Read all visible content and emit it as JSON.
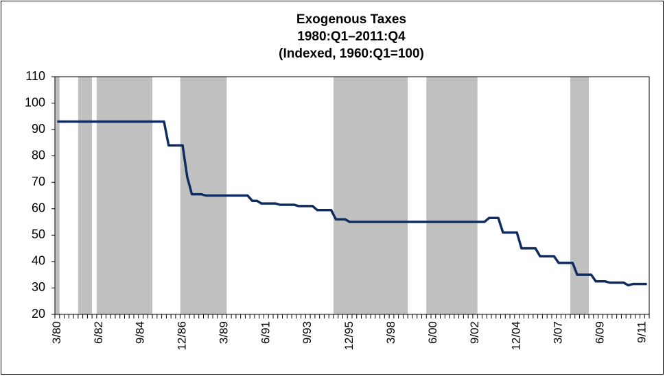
{
  "chart_data": {
    "type": "line",
    "title": "Exogenous Taxes",
    "subtitle": "1980:Q1–2011:Q4",
    "note": "(Indexed, 1960:Q1=100)",
    "categories": [
      "3/80",
      null,
      null,
      null,
      null,
      null,
      null,
      null,
      null,
      "6/82",
      null,
      null,
      null,
      null,
      null,
      null,
      null,
      null,
      "9/84",
      null,
      null,
      null,
      null,
      null,
      null,
      null,
      null,
      "12/86",
      null,
      null,
      null,
      null,
      null,
      null,
      null,
      null,
      "3/89",
      null,
      null,
      null,
      null,
      null,
      null,
      null,
      null,
      "6/91",
      null,
      null,
      null,
      null,
      null,
      null,
      null,
      null,
      "9/93",
      null,
      null,
      null,
      null,
      null,
      null,
      null,
      null,
      "12/95",
      null,
      null,
      null,
      null,
      null,
      null,
      null,
      null,
      "3/98",
      null,
      null,
      null,
      null,
      null,
      null,
      null,
      null,
      "6/00",
      null,
      null,
      null,
      null,
      null,
      null,
      null,
      null,
      "9/02",
      null,
      null,
      null,
      null,
      null,
      null,
      null,
      null,
      "12/04",
      null,
      null,
      null,
      null,
      null,
      null,
      null,
      null,
      "3/07",
      null,
      null,
      null,
      null,
      null,
      null,
      null,
      null,
      "6/09",
      null,
      null,
      null,
      null,
      null,
      null,
      null,
      null,
      "9/11",
      null
    ],
    "values": [
      93,
      93,
      93,
      93,
      93,
      93,
      93,
      93,
      93,
      93,
      93,
      93,
      93,
      93,
      93,
      93,
      93,
      93,
      93,
      93,
      93,
      93,
      93,
      93,
      84,
      84,
      84,
      84,
      72,
      65.5,
      65.5,
      65.5,
      65,
      65,
      65,
      65,
      65,
      65,
      65,
      65,
      65,
      65,
      63,
      63,
      62,
      62,
      62,
      62,
      61.5,
      61.5,
      61.5,
      61.5,
      61,
      61,
      61,
      61,
      59.5,
      59.5,
      59.5,
      59.5,
      56,
      56,
      56,
      55,
      55,
      55,
      55,
      55,
      55,
      55,
      55,
      55,
      55,
      55,
      55,
      55,
      55,
      55,
      55,
      55,
      55,
      55,
      55,
      55,
      55,
      55,
      55,
      55,
      55,
      55,
      55,
      55,
      55,
      56.5,
      56.5,
      56.5,
      51,
      51,
      51,
      51,
      45,
      45,
      45,
      45,
      42,
      42,
      42,
      42,
      39.5,
      39.5,
      39.5,
      39.5,
      35,
      35,
      35,
      35,
      32.5,
      32.5,
      32.5,
      32,
      32,
      32,
      32,
      31,
      31.5,
      31.5,
      31.5,
      31.5
    ],
    "color": "#0f2b5f",
    "shaded_periods": [
      [
        0,
        1
      ],
      [
        5,
        8
      ],
      [
        9,
        21
      ],
      [
        27,
        37
      ],
      [
        60,
        76
      ],
      [
        80,
        91
      ],
      [
        111,
        115
      ]
    ],
    "shade_color": "#c0c0c0",
    "ylim": [
      20,
      110
    ],
    "yticks": [
      20,
      30,
      40,
      50,
      60,
      70,
      80,
      90,
      100,
      110
    ],
    "grid": false
  }
}
